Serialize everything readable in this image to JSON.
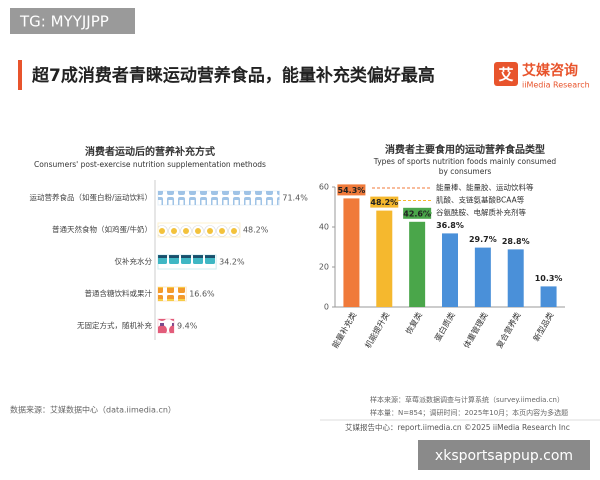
{
  "watermark": "TG: MYYJJPP",
  "title": "超7成消费者青睐运动营养食品，能量补充类偏好最高",
  "brand": {
    "name": "艾媒咨询",
    "en": "iiMedia Research",
    "logo": "艾"
  },
  "left_source": "数据来源：艾媒数据中心（data.iimedia.cn）",
  "notes": [
    "样本来源：草莓派数据调查与计算系统（survey.iimedia.cn）",
    "样本量：N=854；调研时间：2025年10月；本页内容为多选题"
  ],
  "footer": "艾媒报告中心：report.iimedia.cn    ©2025  iiMedia Research  Inc",
  "site": "xksportsappup.com",
  "chart_data": [
    {
      "type": "pictogram",
      "title": "消费者运动后的营养补充方式",
      "subtitle": "Consumers' post-exercise nutrition supplementation methods",
      "categories": [
        "运动营养食品（如蛋白粉/运动饮料）",
        "普通天然食物（如鸡蛋/牛奶）",
        "仅补充水分",
        "普通含糖饮料或果汁",
        "无固定方式，随机补充"
      ],
      "values": [
        71.4,
        48.2,
        34.2,
        16.6,
        9.4
      ],
      "value_labels": [
        "71.4%",
        "48.2%",
        "34.2%",
        "16.6%",
        "9.4%"
      ],
      "colors": [
        "#9fc3e6",
        "#f3c23b",
        "#3fb7c4",
        "#f39a2c",
        "#e25c7a"
      ]
    },
    {
      "type": "bar",
      "title": "消费者主要食用的运动营养食品类型",
      "subtitle": [
        "Types of sports nutrition foods mainly consumed",
        "by consumers"
      ],
      "categories": [
        "能量补充类",
        "机能提升类",
        "恢复类",
        "蛋白质类",
        "体重管理类",
        "复合营养类",
        "新型品类"
      ],
      "values": [
        54.3,
        48.2,
        42.6,
        36.8,
        29.7,
        28.8,
        10.3
      ],
      "value_labels": [
        "54.3%",
        "48.2%",
        "42.6%",
        "36.8%",
        "29.7%",
        "28.8%",
        "10.3%"
      ],
      "colors": [
        "#f07a3a",
        "#f5b82e",
        "#4aa64a",
        "#4a90d9",
        "#4a90d9",
        "#4a90d9",
        "#4a90d9"
      ],
      "legend": [
        {
          "text": "能量棒、能量胶、运动饮料等",
          "color": "#f07a3a"
        },
        {
          "text": "肌酸、支链氨基酸BCAA等",
          "color": "#f5b82e"
        },
        {
          "text": "谷氨酰胺、电解质补充剂等",
          "color": "#4aa64a"
        }
      ],
      "ylim": [
        0,
        60
      ],
      "yticks": [
        0,
        20,
        40,
        60
      ],
      "grid": false
    }
  ]
}
